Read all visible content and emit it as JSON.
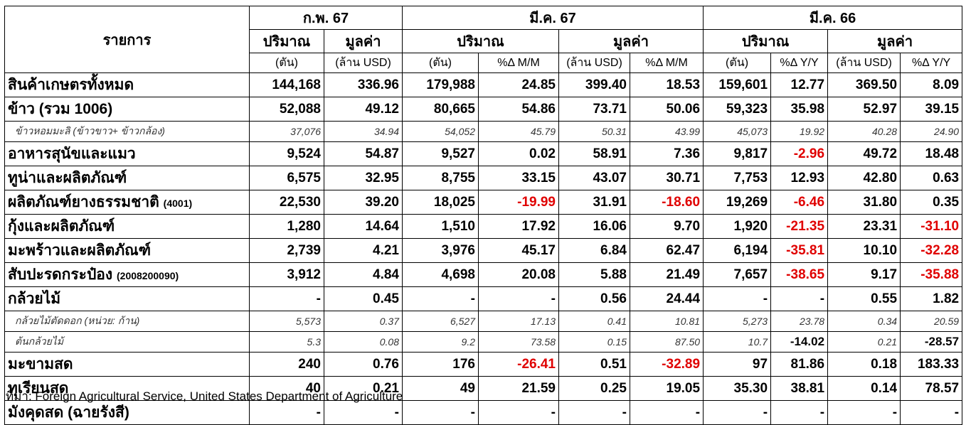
{
  "header": {
    "item": "รายการ",
    "periods": [
      "ก.พ. 67",
      "มี.ค. 67",
      "มี.ค. 66"
    ],
    "measures": [
      "ปริมาณ",
      "มูลค่า",
      "ปริมาณ",
      "มูลค่า",
      "ปริมาณ",
      "มูลค่า"
    ],
    "units": [
      "(ตัน)",
      "(ล้าน USD)",
      "(ตัน)",
      "%Δ M/M",
      "(ล้าน USD)",
      "%Δ M/M",
      "(ตัน)",
      "%Δ Y/Y",
      "(ล้าน USD)",
      "%Δ Y/Y"
    ]
  },
  "negative_color": "#e00000",
  "rows": [
    {
      "label": "สินค้าเกษตรทั้งหมด",
      "style": "main",
      "cells": [
        "144,168",
        "336.96",
        "179,988",
        "24.85",
        "399.40",
        "18.53",
        "159,601",
        "12.77",
        "369.50",
        "8.09"
      ]
    },
    {
      "label": "ข้าว (รวม 1006)",
      "style": "main",
      "cells": [
        "52,088",
        "49.12",
        "80,665",
        "54.86",
        "73.71",
        "50.06",
        "59,323",
        "35.98",
        "52.97",
        "39.15"
      ]
    },
    {
      "label": "ข้าวหอมมะลิ (ข้าวขาว+ ข้าวกล้อง)",
      "style": "sub",
      "cells": [
        "37,076",
        "34.94",
        "54,052",
        "45.79",
        "50.31",
        "43.99",
        "45,073",
        "19.92",
        "40.28",
        "24.90"
      ]
    },
    {
      "label": "อาหารสุนัขและแมว",
      "style": "main",
      "cells": [
        "9,524",
        "54.87",
        "9,527",
        "0.02",
        "58.91",
        "7.36",
        "9,817",
        "-2.96",
        "49.72",
        "18.48"
      ]
    },
    {
      "label": "ทูน่าและผลิตภัณฑ์",
      "style": "main",
      "cells": [
        "6,575",
        "32.95",
        "8,755",
        "33.15",
        "43.07",
        "30.71",
        "7,753",
        "12.93",
        "42.80",
        "0.63"
      ]
    },
    {
      "label": "ผลิตภัณฑ์ยางธรรมชาติ",
      "note": "(4001)",
      "style": "main",
      "cells": [
        "22,530",
        "39.20",
        "18,025",
        "-19.99",
        "31.91",
        "-18.60",
        "19,269",
        "-6.46",
        "31.80",
        "0.35"
      ]
    },
    {
      "label": "กุ้งและผลิตภัณฑ์",
      "style": "main",
      "cells": [
        "1,280",
        "14.64",
        "1,510",
        "17.92",
        "16.06",
        "9.70",
        "1,920",
        "-21.35",
        "23.31",
        "-31.10"
      ]
    },
    {
      "label": "มะพร้าวและผลิตภัณฑ์",
      "style": "main",
      "cells": [
        "2,739",
        "4.21",
        "3,976",
        "45.17",
        "6.84",
        "62.47",
        "6,194",
        "-35.81",
        "10.10",
        "-32.28"
      ]
    },
    {
      "label": "สับปะรดกระป๋อง",
      "note": "(2008200090)",
      "style": "main",
      "cells": [
        "3,912",
        "4.84",
        "4,698",
        "20.08",
        "5.88",
        "21.49",
        "7,657",
        "-38.65",
        "9.17",
        "-35.88"
      ]
    },
    {
      "label": "กล้วยไม้",
      "style": "main",
      "cells": [
        "-",
        "0.45",
        "-",
        "-",
        "0.56",
        "24.44",
        "-",
        "-",
        "0.55",
        "1.82"
      ]
    },
    {
      "label": "กล้วยไม้ตัดดอก (หน่วย: ก้าน)",
      "style": "sub",
      "cells": [
        "5,573",
        "0.37",
        "6,527",
        "17.13",
        "0.41",
        "10.81",
        "5,273",
        "23.78",
        "0.34",
        "20.59"
      ]
    },
    {
      "label": "ต้นกล้วยไม้",
      "style": "sub",
      "cells": [
        "5.3",
        "0.08",
        "9.2",
        "73.58",
        "0.15",
        "87.50",
        "10.7",
        "-14.02",
        "0.21",
        "-28.57"
      ]
    },
    {
      "label": "มะขามสด",
      "style": "main",
      "cells": [
        "240",
        "0.76",
        "176",
        "-26.41",
        "0.51",
        "-32.89",
        "97",
        "81.86",
        "0.18",
        "183.33"
      ]
    },
    {
      "label": "ทุเรียนสด",
      "style": "main",
      "cells": [
        "40",
        "0.21",
        "49",
        "21.59",
        "0.25",
        "19.05",
        "35.30",
        "38.81",
        "0.14",
        "78.57"
      ]
    },
    {
      "label": "มังคุดสด (ฉายรังสี)",
      "style": "main",
      "cells": [
        "-",
        "-",
        "-",
        "-",
        "-",
        "-",
        "-",
        "-",
        "-",
        "-"
      ]
    }
  ],
  "source": "ที่มา: Foreign Agricultural Service, United States Department of Agriculture"
}
